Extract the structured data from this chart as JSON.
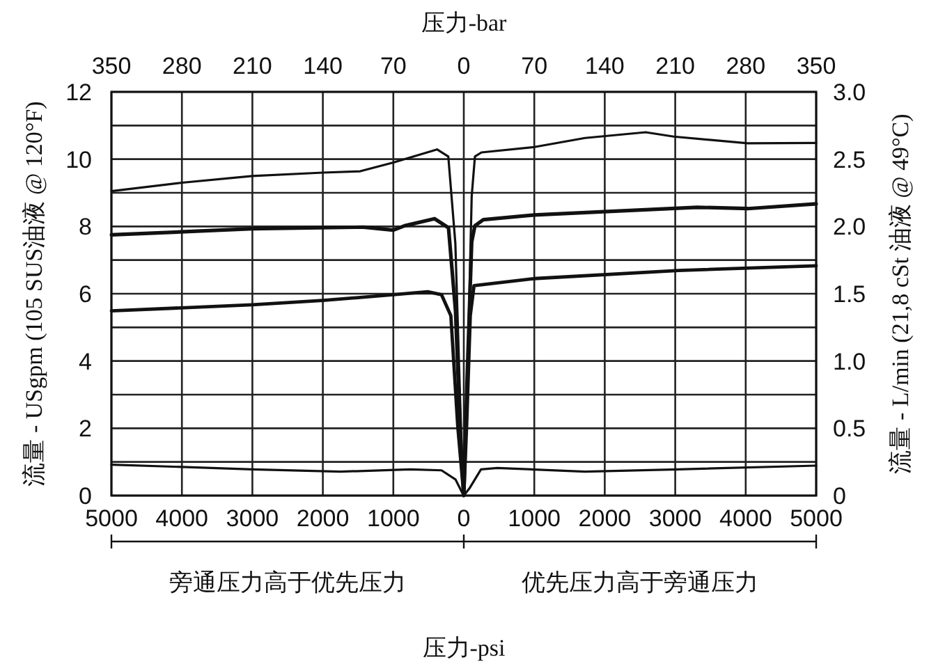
{
  "chart_data": {
    "type": "line",
    "xlabel": "压力-psi",
    "x2label": "压力-bar",
    "ylabel": "流量 - USgpm (105 SUS油液 @ 120°F)",
    "y2label": "流量 - L/min (21,8 cSt 油液 @ 49°C)",
    "annotations": [
      "旁通压力高于优先压力",
      "优先压力高于旁通压力"
    ],
    "xlim": [
      -5000,
      5000
    ],
    "xticks": [
      {
        "value": -5000,
        "label": "5000"
      },
      {
        "value": -4000,
        "label": "4000"
      },
      {
        "value": -3000,
        "label": "3000"
      },
      {
        "value": -2000,
        "label": "2000"
      },
      {
        "value": -1000,
        "label": "1000"
      },
      0,
      1000,
      2000,
      3000,
      4000,
      5000
    ],
    "x2lim": [
      -350,
      350
    ],
    "x2ticks": [
      {
        "value": -350,
        "label": "350"
      },
      {
        "value": -280,
        "label": "280"
      },
      {
        "value": -210,
        "label": "210"
      },
      {
        "value": -140,
        "label": "140"
      },
      {
        "value": -70,
        "label": "70"
      },
      0,
      70,
      140,
      210,
      280,
      350
    ],
    "ylim": [
      0,
      12
    ],
    "yticks": [
      0,
      {
        "value": 1,
        "label": null
      },
      2,
      {
        "value": 3,
        "label": null
      },
      4,
      {
        "value": 5,
        "label": null
      },
      6,
      {
        "value": 7,
        "label": null
      },
      8,
      {
        "value": 9,
        "label": null
      },
      10,
      {
        "value": 11,
        "label": null
      },
      12
    ],
    "y2lim": [
      0,
      3
    ],
    "y2ticks": [
      0,
      {
        "value": 0.5,
        "label": "0.5"
      },
      {
        "value": 1,
        "label": "1.0"
      },
      {
        "value": 1.5,
        "label": "1.5"
      },
      {
        "value": 2,
        "label": "2.0"
      },
      {
        "value": 2.5,
        "label": "2.5"
      },
      {
        "value": 3,
        "label": "3.0"
      }
    ],
    "grid": true,
    "line_style": "solid",
    "series": [
      {
        "color": "#111111",
        "x": [
          -5000,
          -4000,
          -3000,
          -2000,
          -1470,
          -1000,
          -380,
          -220,
          -120,
          -40,
          0,
          66,
          112,
          158,
          250,
          1000,
          1720,
          2580,
          2980,
          4030,
          5000
        ],
        "values": [
          9.05,
          9.3,
          9.5,
          9.6,
          9.64,
          9.9,
          10.29,
          10.08,
          7.5,
          2,
          0,
          4.8,
          8.9,
          10.08,
          10.2,
          10.36,
          10.63,
          10.8,
          10.67,
          10.47,
          10.48
        ]
      },
      {
        "color": "#111111",
        "x": [
          -5000,
          -3000,
          -1420,
          -1000,
          -840,
          -415,
          -217,
          -118,
          -40,
          0,
          46,
          112,
          158,
          277,
          1000,
          1990,
          3310,
          4030,
          5000
        ],
        "values": [
          7.75,
          7.93,
          7.98,
          7.89,
          8.02,
          8.23,
          7.96,
          5.5,
          1.4,
          0,
          3.4,
          7.54,
          8.02,
          8.2,
          8.34,
          8.44,
          8.57,
          8.53,
          8.67
        ]
      },
      {
        "color": "#111111",
        "x": [
          -5000,
          -3000,
          -2000,
          -1000,
          -513,
          -316,
          -184,
          -86,
          0,
          40,
          92,
          145,
          1000,
          3045,
          5000
        ],
        "values": [
          5.49,
          5.67,
          5.8,
          5.97,
          6.06,
          5.97,
          5.35,
          2.06,
          0,
          2.06,
          5.35,
          6.24,
          6.45,
          6.69,
          6.83
        ]
      },
      {
        "color": "#111111",
        "x": [
          -5000,
          -3000,
          -1750,
          -760,
          -316,
          -118,
          -20,
          0,
          79,
          244,
          474,
          1720,
          3045,
          5000
        ],
        "values": [
          0.92,
          0.78,
          0.71,
          0.78,
          0.75,
          0.48,
          0.07,
          0,
          0.21,
          0.78,
          0.82,
          0.71,
          0.78,
          0.89
        ]
      }
    ]
  }
}
